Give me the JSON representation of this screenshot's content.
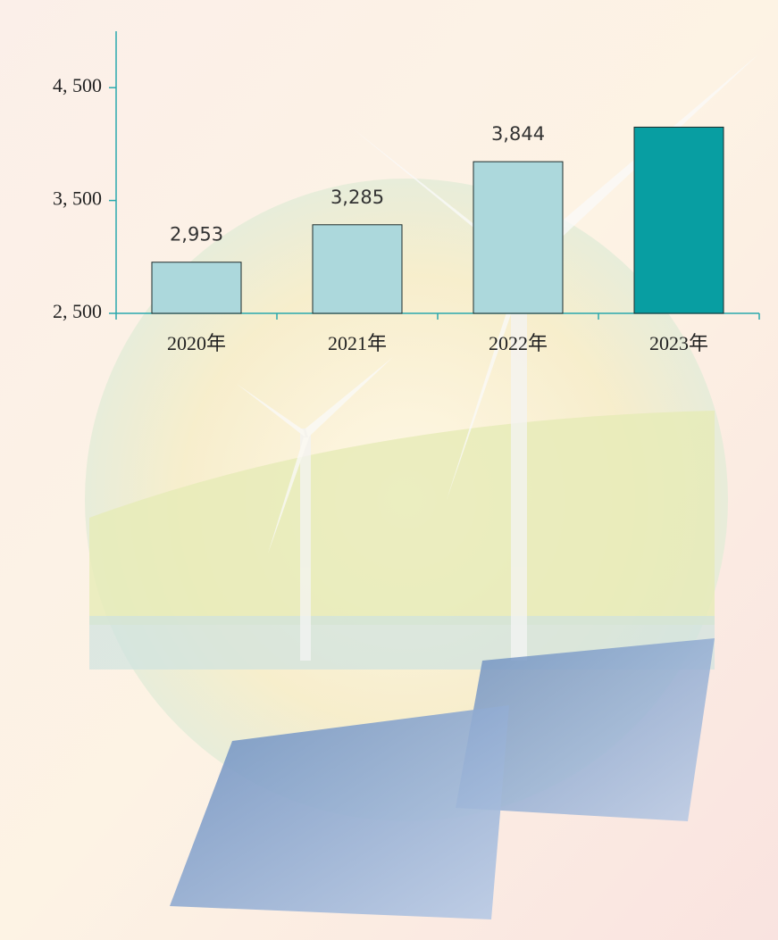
{
  "chart_data": {
    "type": "bar",
    "categories": [
      "2020年",
      "2021年",
      "2022年",
      "2023年"
    ],
    "values": [
      2953,
      3285,
      3844,
      4150
    ],
    "value_labels": [
      "2,953",
      "3,285",
      "3,844",
      null
    ],
    "colors": [
      "#acd8dc",
      "#acd8dc",
      "#acd8dc",
      "#089ea2"
    ],
    "ylim": [
      2500,
      5000
    ],
    "yticks": [
      {
        "value": 2500,
        "label": "2, 500"
      },
      {
        "value": 3500,
        "label": "3, 500"
      },
      {
        "value": 4500,
        "label": "4, 500"
      }
    ],
    "grid": false
  }
}
